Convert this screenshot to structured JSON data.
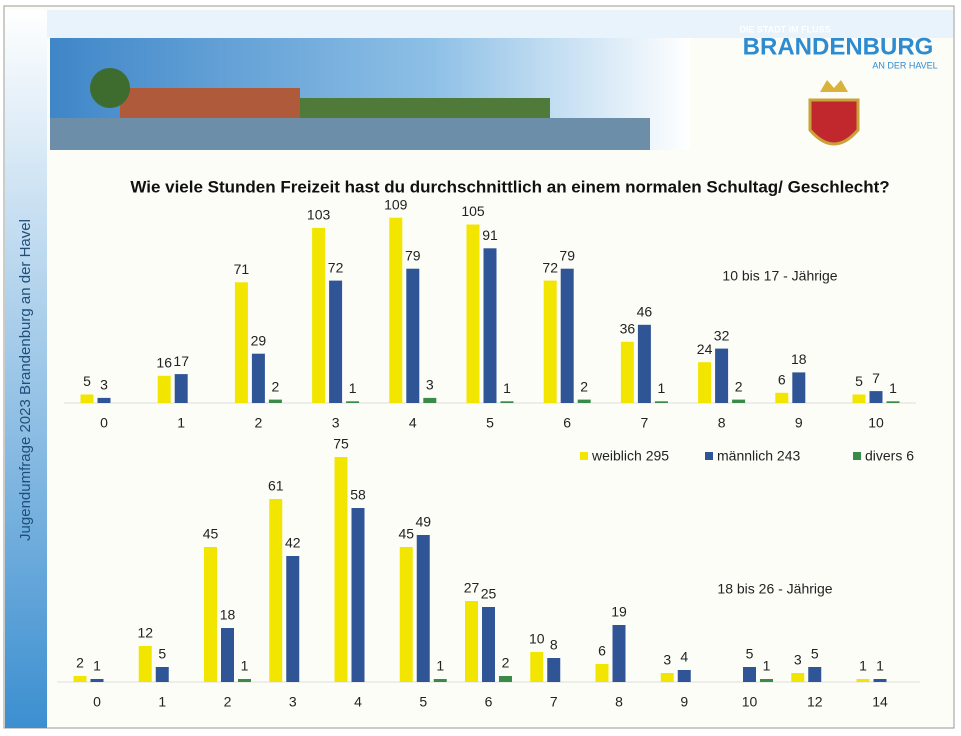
{
  "header": {
    "sidebar": "Jugendumfrage 2023 Brandenburg an der Havel",
    "logo_top": "DIE STADT IM FLUSS",
    "logo_name": "BRANDENBURG",
    "logo_bottom": "AN DER HAVEL",
    "title": "Wie viele Stunden Freizeit hast du durchschnittlich an einem normalen Schultag/ Geschlecht?"
  },
  "chart_data": [
    {
      "type": "bar",
      "annotation": "10 bis 17 - Jährige",
      "categories": [
        "0",
        "1",
        "2",
        "3",
        "4",
        "5",
        "6",
        "7",
        "8",
        "9",
        "10"
      ],
      "series": [
        {
          "color": "#f2e600",
          "values": [
            5,
            16,
            71,
            103,
            109,
            105,
            72,
            36,
            24,
            6,
            5
          ]
        },
        {
          "color": "#2f5597",
          "values": [
            3,
            17,
            29,
            72,
            79,
            91,
            79,
            46,
            32,
            18,
            7
          ]
        },
        {
          "color": "#3a8a4a",
          "values": [
            null,
            null,
            2,
            1,
            3,
            1,
            2,
            1,
            2,
            null,
            1
          ]
        }
      ]
    },
    {
      "type": "bar",
      "annotation": "18 bis 26 - Jährige",
      "categories": [
        "0",
        "1",
        "2",
        "3",
        "4",
        "5",
        "6",
        "7",
        "8",
        "9",
        "10",
        "12",
        "14"
      ],
      "series": [
        {
          "name": "weiblich 295",
          "color": "#f2e600",
          "values": [
            2,
            12,
            45,
            61,
            75,
            45,
            27,
            10,
            6,
            3,
            null,
            3,
            1
          ]
        },
        {
          "name": "männlich 243",
          "color": "#2f5597",
          "values": [
            1,
            5,
            18,
            42,
            58,
            49,
            25,
            8,
            19,
            4,
            5,
            5,
            1
          ]
        },
        {
          "name": "divers 6",
          "color": "#3a8a4a",
          "values": [
            null,
            null,
            1,
            null,
            null,
            1,
            2,
            null,
            null,
            null,
            1,
            null,
            null
          ]
        }
      ]
    }
  ]
}
